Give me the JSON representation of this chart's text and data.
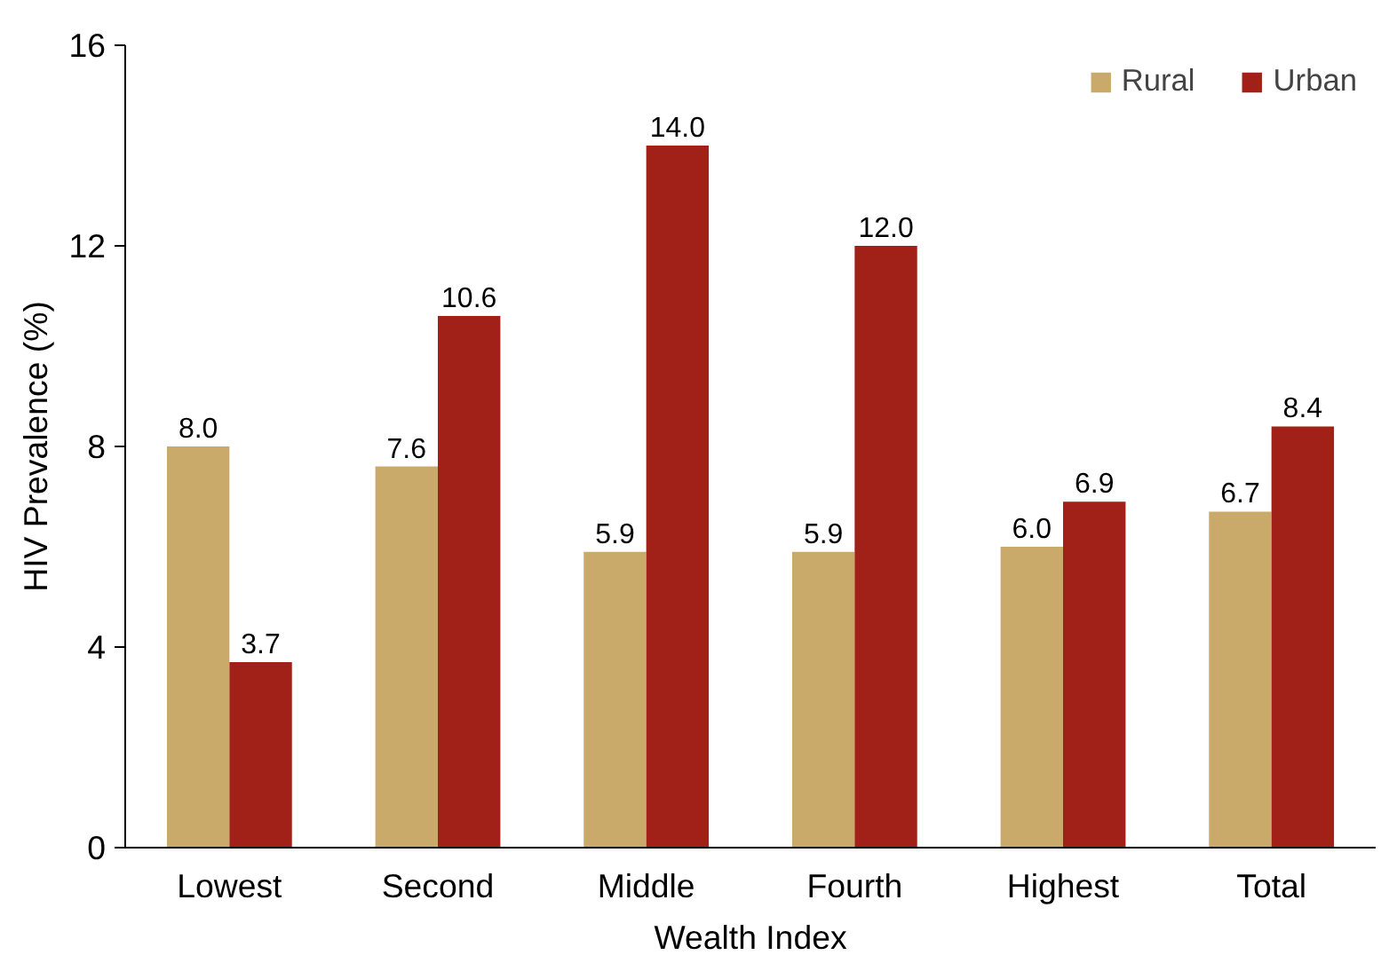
{
  "chart_data": {
    "type": "bar",
    "xlabel": "Wealth Index",
    "ylabel": "HIV Prevalence (%)",
    "categories": [
      "Lowest",
      "Second",
      "Middle",
      "Fourth",
      "Highest",
      "Total"
    ],
    "series": [
      {
        "name": "Rural",
        "color": "#c9aa6a",
        "values": [
          8.0,
          7.6,
          5.9,
          5.9,
          6.0,
          6.7
        ],
        "value_labels": [
          "8.0",
          "7.6",
          "5.9",
          "5.9",
          "6.0",
          "6.7"
        ]
      },
      {
        "name": "Urban",
        "color": "#a12118",
        "values": [
          3.7,
          10.6,
          14.0,
          12.0,
          6.9,
          8.4
        ],
        "value_labels": [
          "3.7",
          "10.6",
          "14.0",
          "12.0",
          "6.9",
          "8.4"
        ]
      }
    ],
    "ylim": [
      0,
      16
    ],
    "yticks": [
      0,
      4,
      8,
      12,
      16
    ],
    "grid": false,
    "legend": "top right"
  }
}
